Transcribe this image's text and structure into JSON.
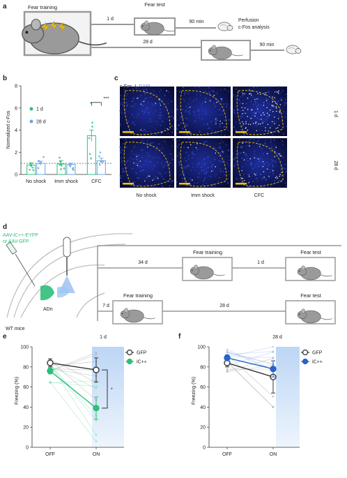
{
  "panel_labels": {
    "a": "a",
    "b": "b",
    "c": "c",
    "d": "d",
    "e": "e",
    "f": "f"
  },
  "panel_a": {
    "fear_training": "Fear training",
    "fear_test": "Fear test",
    "d1": "1 d",
    "d28": "28 d",
    "min90_top": "90 min",
    "min90_bottom": "90 min",
    "perfusion": "Perfusion",
    "cfos_analysis": "c-Fos analysis"
  },
  "panel_c": {
    "legend_cfos": "c-Fos",
    "legend_sep": "I",
    "legend_dapi": "DAPI",
    "row_1d": "1 d",
    "row_28d": "28 d",
    "col_labels": [
      "No shock",
      "Imm shock",
      "CFC"
    ]
  },
  "panel_d": {
    "virus1": "AAV-iC++-EYFP",
    "virus2": "or AAV-GFP",
    "region": "ADn",
    "mice": "WT mice",
    "d34": "34 d",
    "d1": "1 d",
    "d7": "7 d",
    "d28": "28 d",
    "fear_training_top": "Fear training",
    "fear_test_top": "Fear test",
    "fear_training_bottom": "Fear training",
    "fear_test_bottom": "Fear test"
  },
  "colors": {
    "green": "#2dbf7a",
    "light_blue": "#6aa6e6",
    "blue": "#2a62c9",
    "dark": "#333333",
    "gray_box": "#999999",
    "shade": "#cfe1f7",
    "yellow": "#f3c300"
  },
  "chart_data": [
    {
      "id": "b",
      "type": "bar",
      "ylabel": "Normalized c-Fos",
      "categories": [
        "No shock",
        "Imm shock",
        "CFC"
      ],
      "series": [
        {
          "name": "1 d",
          "values": [
            0.85,
            0.95,
            3.5
          ],
          "sem": [
            0.2,
            0.3,
            0.5
          ]
        },
        {
          "name": "28 d",
          "values": [
            1.0,
            0.9,
            1.25
          ],
          "sem": [
            0.2,
            0.12,
            0.22
          ]
        }
      ],
      "ylim": [
        0,
        8
      ],
      "yticks": [
        0,
        2,
        4,
        6,
        8
      ],
      "reference_line": 1,
      "significance": "***",
      "legend_position": "top-left"
    },
    {
      "id": "e",
      "type": "line",
      "title": "1 d",
      "ylabel": "Freezing (%)",
      "categories": [
        "OFF",
        "ON"
      ],
      "series": [
        {
          "name": "GFP",
          "values": [
            84,
            77
          ],
          "sem": [
            4,
            12
          ]
        },
        {
          "name": "iC++",
          "values": [
            76,
            39
          ],
          "sem": [
            3,
            11
          ]
        }
      ],
      "ylim": [
        0,
        100
      ],
      "yticks": [
        0,
        20,
        40,
        60,
        80,
        100
      ],
      "significance": "*",
      "legend_position": "top-right"
    },
    {
      "id": "f",
      "type": "line",
      "title": "28 d",
      "ylabel": "Freezing (%)",
      "categories": [
        "OFF",
        "ON"
      ],
      "series": [
        {
          "name": "GFP",
          "values": [
            84,
            70
          ],
          "sem": [
            4,
            16
          ]
        },
        {
          "name": "iC++",
          "values": [
            89,
            78
          ],
          "sem": [
            3,
            8
          ]
        }
      ],
      "ylim": [
        0,
        100
      ],
      "yticks": [
        0,
        20,
        40,
        60,
        80,
        100
      ],
      "legend_position": "top-right"
    }
  ]
}
